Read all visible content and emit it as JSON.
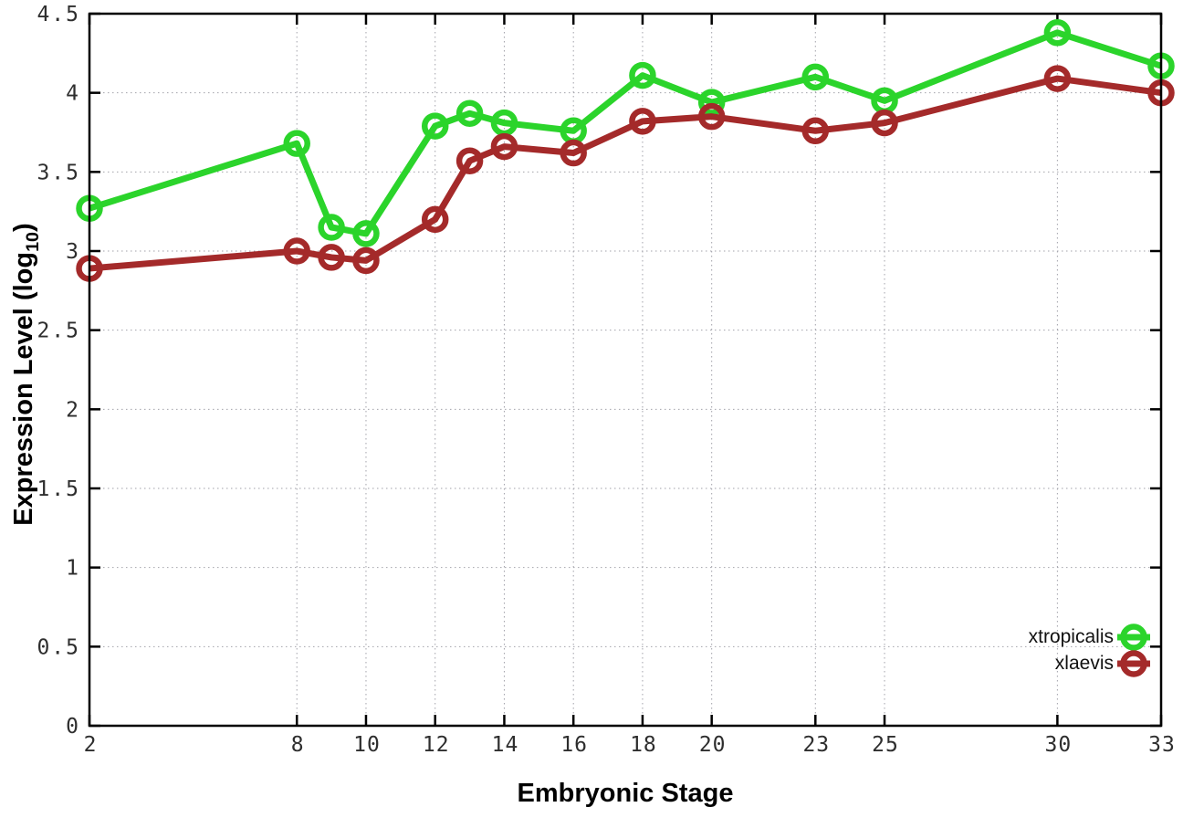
{
  "chart_data": {
    "type": "line",
    "title": "",
    "xlabel": "Embryonic Stage",
    "ylabel": "Expression Level (log10)",
    "ylabel_parts": {
      "main": "Expression Level (log",
      "sub": "10",
      "end": ")"
    },
    "x": [
      2,
      8,
      9,
      10,
      12,
      13,
      14,
      16,
      18,
      20,
      23,
      25,
      30,
      33
    ],
    "x_ticks": [
      2,
      8,
      10,
      12,
      14,
      16,
      18,
      20,
      23,
      25,
      30,
      33
    ],
    "y_ticks": [
      0,
      0.5,
      1,
      1.5,
      2,
      2.5,
      3,
      3.5,
      4,
      4.5
    ],
    "xlim": [
      2,
      33
    ],
    "ylim": [
      0,
      4.5
    ],
    "grid": true,
    "legend_position": "bottom-right",
    "series": [
      {
        "name": "xtropicalis",
        "color": "#2bd42b",
        "values": [
          3.27,
          3.68,
          3.15,
          3.11,
          3.79,
          3.87,
          3.81,
          3.76,
          4.11,
          3.94,
          4.1,
          3.95,
          4.38,
          4.17
        ]
      },
      {
        "name": "xlaevis",
        "color": "#a42a2a",
        "values": [
          2.89,
          3.0,
          2.96,
          2.94,
          3.2,
          3.57,
          3.66,
          3.62,
          3.82,
          3.85,
          3.76,
          3.81,
          4.09,
          4.0
        ]
      }
    ],
    "colors": {
      "grid": "#a2a2aa",
      "axis": "#000000",
      "tick_text": "#2e2e2e"
    }
  }
}
